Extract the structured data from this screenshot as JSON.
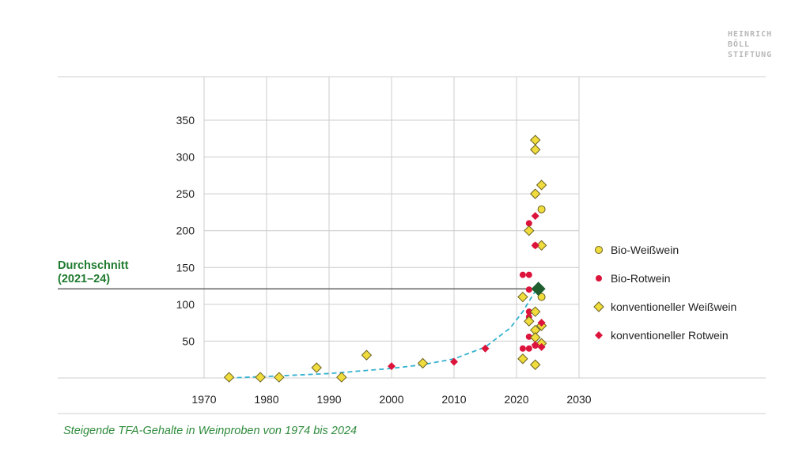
{
  "logo": {
    "lines": [
      "HEINRICH",
      "BÖLL",
      "STIFTUNG"
    ]
  },
  "average_label": {
    "line1": "Durchschnitt",
    "line2": "(2021–24)"
  },
  "caption": "Steigende TFA-Gehalte in Weinproben von 1974 bis 2024",
  "colors": {
    "yellow": "#f0dc3c",
    "red": "#dc143c",
    "green_marker": "#1f5e2e",
    "trend": "#35b2cf",
    "avg_line": "#555555",
    "grid": "#cccccc"
  },
  "legend": [
    {
      "label": "Bio-Weißwein",
      "shape": "circle",
      "color": "yellow"
    },
    {
      "label": "Bio-Rotwein",
      "shape": "circle",
      "color": "red"
    },
    {
      "label": "konventioneller Weißwein",
      "shape": "diamond",
      "color": "yellow"
    },
    {
      "label": "konventioneller Rotwein",
      "shape": "diamond",
      "color": "red"
    }
  ],
  "chart_data": {
    "type": "scatter",
    "title": "",
    "xlabel": "",
    "ylabel": "",
    "xlim": [
      1970,
      2030
    ],
    "ylim": [
      0,
      390
    ],
    "xticks": [
      1970,
      1980,
      1990,
      2000,
      2010,
      2020,
      2030
    ],
    "yticks": [
      50,
      100,
      150,
      200,
      250,
      300,
      350
    ],
    "grid": true,
    "average": {
      "label": "Durchschnitt (2021–24)",
      "x": 2023.5,
      "y": 121
    },
    "trend": [
      [
        1974,
        0
      ],
      [
        1980,
        2
      ],
      [
        1990,
        6
      ],
      [
        2000,
        13
      ],
      [
        2005,
        18
      ],
      [
        2010,
        26
      ],
      [
        2015,
        42
      ],
      [
        2019,
        68
      ],
      [
        2021,
        90
      ],
      [
        2023,
        118
      ]
    ],
    "series": [
      {
        "name": "Bio-Weißwein",
        "marker": "circle",
        "color": "yellow",
        "points": [
          [
            2024,
            229
          ],
          [
            2024,
            110
          ]
        ]
      },
      {
        "name": "Bio-Rotwein",
        "marker": "circle",
        "color": "red",
        "points": [
          [
            2021,
            140
          ],
          [
            2022,
            140
          ],
          [
            2022,
            210
          ],
          [
            2022,
            120
          ],
          [
            2022,
            90
          ],
          [
            2022,
            83
          ],
          [
            2022,
            56
          ],
          [
            2021,
            40
          ],
          [
            2022,
            40
          ],
          [
            2023,
            44
          ],
          [
            2023,
            180
          ],
          [
            2024,
            73
          ]
        ]
      },
      {
        "name": "konventioneller Weißwein",
        "marker": "diamond",
        "color": "yellow",
        "points": [
          [
            1974,
            1
          ],
          [
            1979,
            1
          ],
          [
            1982,
            1
          ],
          [
            1988,
            14
          ],
          [
            1992,
            1
          ],
          [
            1996,
            31
          ],
          [
            2005,
            20
          ],
          [
            2021,
            110
          ],
          [
            2021,
            26
          ],
          [
            2022,
            200
          ],
          [
            2022,
            77
          ],
          [
            2023,
            323
          ],
          [
            2023,
            310
          ],
          [
            2023,
            250
          ],
          [
            2023,
            90
          ],
          [
            2023,
            65
          ],
          [
            2023,
            55
          ],
          [
            2023,
            18
          ],
          [
            2024,
            262
          ],
          [
            2024,
            180
          ],
          [
            2024,
            71
          ],
          [
            2024,
            47
          ]
        ]
      },
      {
        "name": "konventioneller Rotwein",
        "marker": "diamond",
        "color": "red",
        "points": [
          [
            2000,
            16
          ],
          [
            2010,
            22
          ],
          [
            2015,
            40
          ],
          [
            2023,
            220
          ],
          [
            2023,
            180
          ],
          [
            2023,
            45
          ],
          [
            2024,
            75
          ],
          [
            2024,
            42
          ]
        ]
      }
    ]
  }
}
